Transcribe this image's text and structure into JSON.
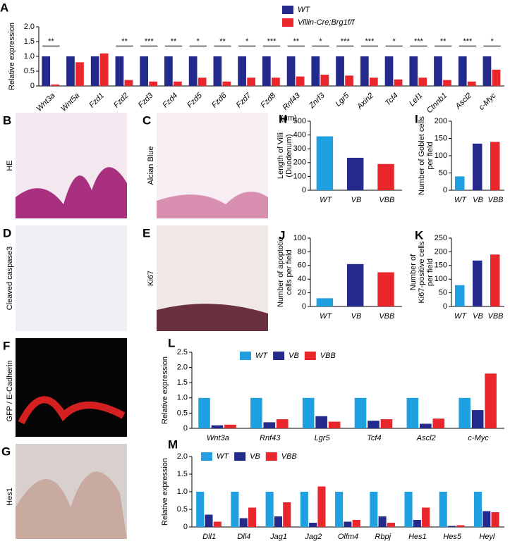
{
  "panels": [
    {
      "letter": "B",
      "label": "HE"
    },
    {
      "letter": "C",
      "label": "Alcian Blue"
    },
    {
      "letter": "D",
      "label": "Cleaved caspase3"
    },
    {
      "letter": "E",
      "label": "Ki67"
    },
    {
      "letter": "F",
      "label": "GFP / E-Cadherin"
    },
    {
      "letter": "G",
      "label": "Hes1"
    }
  ],
  "chart_data": [
    {
      "type": "bar",
      "panel": "A",
      "ylabel": [
        "Relative expression"
      ],
      "categories": [
        "Wnt3a",
        "Wnt5a",
        "Fzd1",
        "Fzd2",
        "Fzd3",
        "Fzd4",
        "Fzd5",
        "Fzd6",
        "Fzd7",
        "Fzd8",
        "Rnf43",
        "Znrf3",
        "Lgr5",
        "Axin2",
        "Tcf4",
        "Lef1",
        "Ctnnb1",
        "Ascl2",
        "c-Myc"
      ],
      "series": [
        {
          "name": "WT",
          "color": "#232a8c",
          "values": [
            1,
            1,
            1,
            1,
            1,
            1,
            1,
            1,
            1,
            1,
            1,
            1,
            1,
            1,
            1,
            1,
            1,
            1,
            1
          ]
        },
        {
          "name": "Villin-Cre;Brg1f/f",
          "color": "#e8262b",
          "values": [
            0.05,
            0.8,
            1.1,
            0.2,
            0.15,
            0.15,
            0.28,
            0.15,
            0.28,
            0.28,
            0.32,
            0.38,
            0.35,
            0.28,
            0.22,
            0.28,
            0.2,
            0.15,
            0.55
          ]
        }
      ],
      "significance": [
        "**",
        null,
        null,
        "**",
        "***",
        "**",
        "*",
        "**",
        "*",
        "***",
        "**",
        "*",
        "***",
        "***",
        "*",
        "***",
        "**",
        "***",
        "*"
      ],
      "ylim": [
        0,
        2
      ],
      "yticks": [
        0,
        {
          "value": 0.5,
          "label": "0.5"
        },
        {
          "value": 1,
          "label": "1.0"
        },
        {
          "value": 1.5,
          "label": "1.5"
        },
        {
          "value": 2,
          "label": "2.0"
        }
      ]
    },
    {
      "type": "bar",
      "panel": "H",
      "unit": "(μm)",
      "ylabel": [
        "Length of Villi",
        "(Duodenum)"
      ],
      "categories": [
        "WT",
        "VB",
        "VBB"
      ],
      "values": [
        390,
        235,
        190
      ],
      "colors": [
        "#1fa0e0",
        "#232a8c",
        "#e8262b"
      ],
      "ylim": [
        0,
        500
      ],
      "yticks": [
        0,
        100,
        200,
        300,
        400,
        500
      ]
    },
    {
      "type": "bar",
      "panel": "I",
      "ylabel": [
        "Number of Goblet cells",
        "per field"
      ],
      "categories": [
        "WT",
        "VB",
        "VBB"
      ],
      "values": [
        40,
        135,
        140
      ],
      "colors": [
        "#1fa0e0",
        "#232a8c",
        "#e8262b"
      ],
      "ylim": [
        0,
        200
      ],
      "yticks": [
        0,
        50,
        100,
        150,
        200
      ]
    },
    {
      "type": "bar",
      "panel": "J",
      "ylabel": [
        "Number of apoptotic",
        "cells per field"
      ],
      "categories": [
        "WT",
        "VB",
        "VBB"
      ],
      "values": [
        12,
        62,
        50
      ],
      "colors": [
        "#1fa0e0",
        "#232a8c",
        "#e8262b"
      ],
      "ylim": [
        0,
        100
      ],
      "yticks": [
        0,
        20,
        40,
        60,
        80,
        100
      ]
    },
    {
      "type": "bar",
      "panel": "K",
      "ylabel": [
        "Number of",
        "Ki67-positive cells",
        "per field"
      ],
      "categories": [
        "WT",
        "VB",
        "VBB"
      ],
      "values": [
        78,
        168,
        190
      ],
      "colors": [
        "#1fa0e0",
        "#232a8c",
        "#e8262b"
      ],
      "ylim": [
        0,
        250
      ],
      "yticks": [
        0,
        50,
        100,
        150,
        200,
        250
      ]
    },
    {
      "type": "bar",
      "panel": "L",
      "ylabel": [
        "Relative expression"
      ],
      "categories": [
        "Wnt3a",
        "Rnf43",
        "Lgr5",
        "Tcf4",
        "Ascl2",
        "c-Myc"
      ],
      "series": [
        {
          "name": "WT",
          "color": "#1fa0e0",
          "values": [
            1,
            1,
            1,
            1,
            1,
            1
          ]
        },
        {
          "name": "VB",
          "color": "#232a8c",
          "values": [
            0.1,
            0.2,
            0.4,
            0.25,
            0.15,
            0.6
          ]
        },
        {
          "name": "VBB",
          "color": "#e8262b",
          "values": [
            0.12,
            0.3,
            0.22,
            0.3,
            0.32,
            1.8
          ]
        }
      ],
      "ylim": [
        0,
        2.5
      ],
      "yticks": [
        0,
        {
          "value": 0.5,
          "label": "0.5"
        },
        {
          "value": 1,
          "label": "1.0"
        },
        {
          "value": 1.5,
          "label": "1.5"
        },
        {
          "value": 2,
          "label": "2.0"
        },
        {
          "value": 2.5,
          "label": "2.5"
        }
      ]
    },
    {
      "type": "bar",
      "panel": "M",
      "ylabel": [
        "Relative expression"
      ],
      "categories": [
        "Dll1",
        "Dll4",
        "Jag1",
        "Jag2",
        "Olfm4",
        "Rbpj",
        "Hes1",
        "Hes5",
        "Heyl"
      ],
      "series": [
        {
          "name": "WT",
          "color": "#1fa0e0",
          "values": [
            1,
            1,
            1,
            1,
            1,
            1,
            1,
            1,
            1
          ]
        },
        {
          "name": "VB",
          "color": "#232a8c",
          "values": [
            0.35,
            0.25,
            0.3,
            0.12,
            0.15,
            0.3,
            0.2,
            0.03,
            0.45
          ]
        },
        {
          "name": "VBB",
          "color": "#e8262b",
          "values": [
            0.15,
            0.55,
            0.7,
            1.15,
            0.2,
            0.12,
            0.55,
            0.05,
            0.42
          ]
        }
      ],
      "ylim": [
        0,
        2
      ],
      "yticks": [
        0,
        {
          "value": 0.5,
          "label": "0.5"
        },
        {
          "value": 1,
          "label": "1.0"
        },
        {
          "value": 1.5,
          "label": "1.5"
        },
        {
          "value": 2,
          "label": "2.0"
        }
      ]
    }
  ]
}
